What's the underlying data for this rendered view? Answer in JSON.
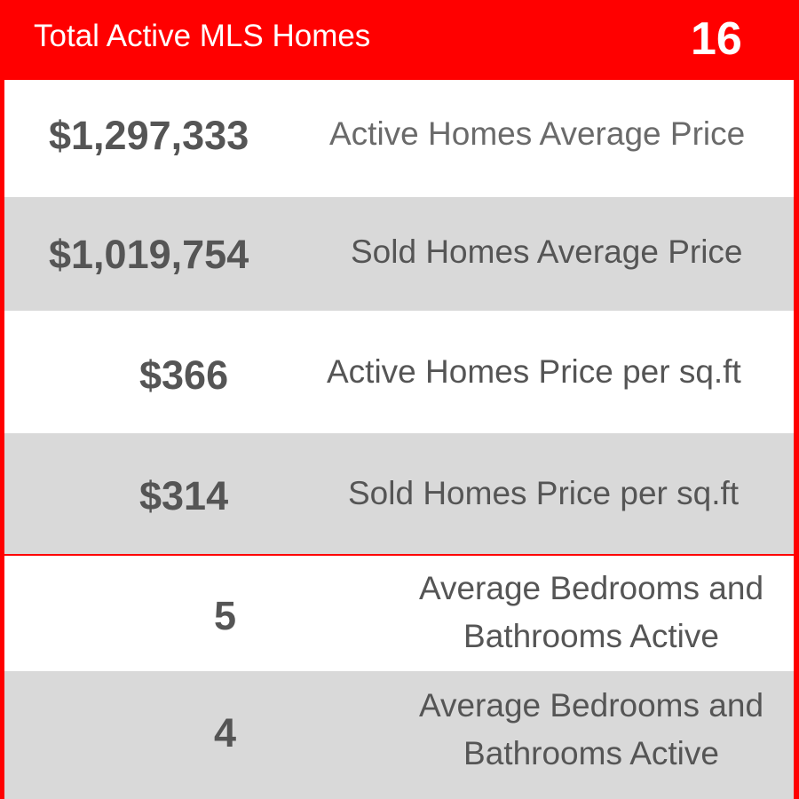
{
  "header": {
    "title": "Total Active MLS Homes",
    "count": "16"
  },
  "stats": [
    {
      "value": "$1,297,333",
      "label": "Active Homes Average Price"
    },
    {
      "value": "$1,019,754",
      "label": "Sold Homes Average Price"
    },
    {
      "value": "$366",
      "label": "Active Homes Price per sq.ft"
    },
    {
      "value": "$314",
      "label": "Sold Homes Price per sq.ft"
    },
    {
      "value": "5",
      "label": "Average Bedrooms and Bathrooms Active"
    },
    {
      "value": "4",
      "label": "Average Bedrooms and Bathrooms Active"
    }
  ],
  "colors": {
    "accent": "#ff0000",
    "row_grey": "#d9d9d9",
    "value_text": "#555555",
    "label_text": "#6a6a6a"
  }
}
